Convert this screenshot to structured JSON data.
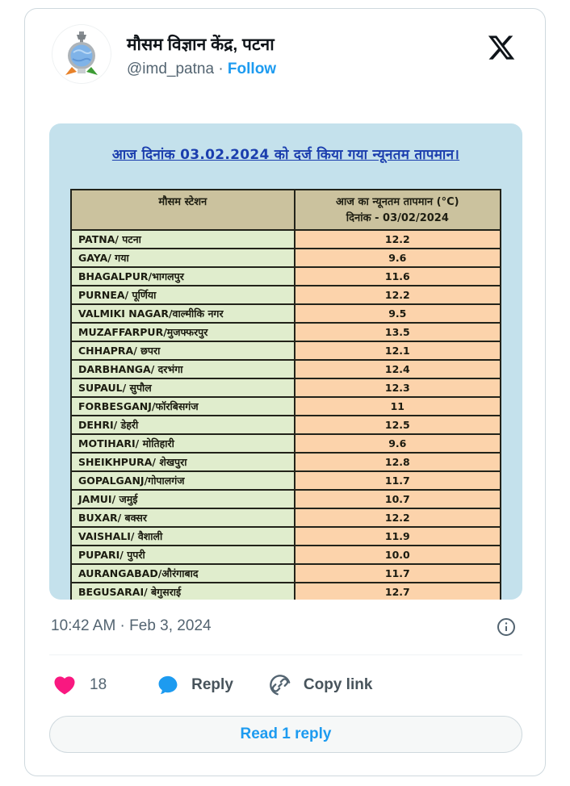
{
  "header": {
    "display_name": "मौसम विज्ञान केंद्र, पटना",
    "handle": "@imd_patna",
    "separator": "·",
    "follow_label": "Follow"
  },
  "image": {
    "title": "आज दिनांक 03.02.2024 को दर्ज किया गया न्यूनतम तापमान।",
    "table": {
      "col1_header": "मौसम स्टेशन",
      "col2_header_line1": "आज का  न्यूनतम तापमान (°C)",
      "col2_header_line2": "दिनांक - 03/02/2024",
      "rows": [
        {
          "station": "PATNA/ पटना",
          "temp": "12.2"
        },
        {
          "station": "GAYA/ गया",
          "temp": "9.6"
        },
        {
          "station": "BHAGALPUR/भागलपुर",
          "temp": "11.6"
        },
        {
          "station": "PURNEA/ पूर्णिया",
          "temp": "12.2"
        },
        {
          "station": "VALMIKI NAGAR/वाल्मीकि नगर",
          "temp": "9.5"
        },
        {
          "station": "MUZAFFARPUR/मुजफ्फरपुर",
          "temp": "13.5"
        },
        {
          "station": "CHHAPRA/ छपरा",
          "temp": "12.1"
        },
        {
          "station": "DARBHANGA/ दरभंगा",
          "temp": "12.4"
        },
        {
          "station": "SUPAUL/ सुपौल",
          "temp": "12.3"
        },
        {
          "station": "FORBESGANJ/फॉरबिसगंज",
          "temp": "11"
        },
        {
          "station": "DEHRI/ डेहरी",
          "temp": "12.5"
        },
        {
          "station": "MOTIHARI/ मोतिहारी",
          "temp": "9.6"
        },
        {
          "station": "SHEIKHPURA/ शेखपुरा",
          "temp": "12.8"
        },
        {
          "station": "GOPALGANJ/गोपालगंज",
          "temp": "11.7"
        },
        {
          "station": "JAMUI/ जमुई",
          "temp": "10.7"
        },
        {
          "station": "BUXAR/ बक्सर",
          "temp": "12.2"
        },
        {
          "station": "VAISHALI/ वैशाली",
          "temp": "11.9"
        },
        {
          "station": "PUPARI/ पुपरी",
          "temp": "10.0"
        },
        {
          "station": "AURANGABAD/औरंगाबाद",
          "temp": "11.7"
        },
        {
          "station": "BEGUSARAI/ बेगुसराई",
          "temp": "12.7"
        }
      ]
    }
  },
  "footer": {
    "timestamp": "10:42 AM · Feb 3, 2024",
    "like_count": "18",
    "reply_label": "Reply",
    "copy_link_label": "Copy link",
    "read_reply_label": "Read 1 reply"
  },
  "icons": {
    "x_logo": "x-logo",
    "heart": "filled-heart",
    "reply": "filled-speech-bubble",
    "copy_link": "chain-link-in-circle",
    "info": "info-circle"
  },
  "colors": {
    "accent_blue": "#1d9bf0",
    "like_pink": "#f91880",
    "text_primary": "#0f1419",
    "text_secondary": "#536471",
    "card_border": "#cfd9de",
    "image_background": "#c4e1ec",
    "title_blue": "#1b3eae",
    "table_header_bg": "#cbc29e",
    "station_cell_bg": "#e0edcd",
    "temp_cell_bg": "#fcd3ab",
    "table_border": "#22231a"
  }
}
